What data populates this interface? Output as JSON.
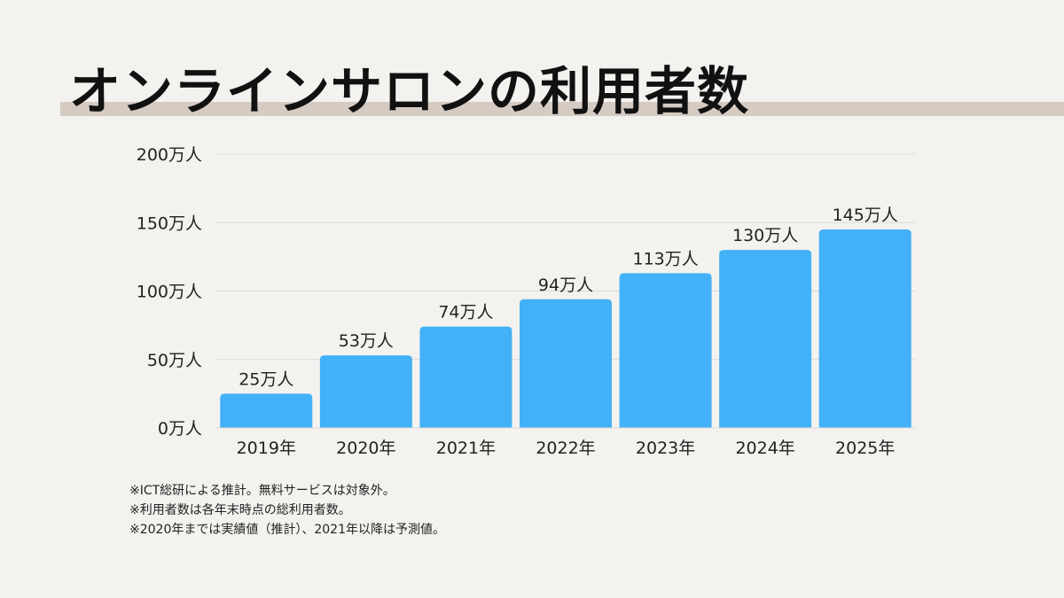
{
  "title": "オンラインサロンの利用者数",
  "colors": {
    "background": "#f4f2ef",
    "bar": "#42b1f7",
    "title_underline": "#d6cbc3",
    "gridline": "#d9d9d9",
    "text": "#222222"
  },
  "chart_data": {
    "type": "bar",
    "title": "オンラインサロンの利用者数",
    "xlabel": "",
    "ylabel": "",
    "categories": [
      "2019年",
      "2020年",
      "2021年",
      "2022年",
      "2023年",
      "2024年",
      "2025年"
    ],
    "values": [
      25,
      53,
      74,
      94,
      113,
      130,
      145
    ],
    "value_labels": [
      "25万人",
      "53万人",
      "74万人",
      "94万人",
      "113万人",
      "130万人",
      "145万人"
    ],
    "unit": "万人",
    "ylim": [
      0,
      200
    ],
    "yticks": [
      0,
      50,
      100,
      150,
      200
    ],
    "ytick_labels": [
      "0万人",
      "50万人",
      "100万人",
      "150万人",
      "200万人"
    ],
    "grid": true,
    "legend": "none"
  },
  "notes": [
    "※ICT総研による推計。無料サービスは対象外。",
    "※利用者数は各年末時点の総利用者数。",
    "※2020年までは実績値（推計）、2021年以降は予測値。"
  ]
}
